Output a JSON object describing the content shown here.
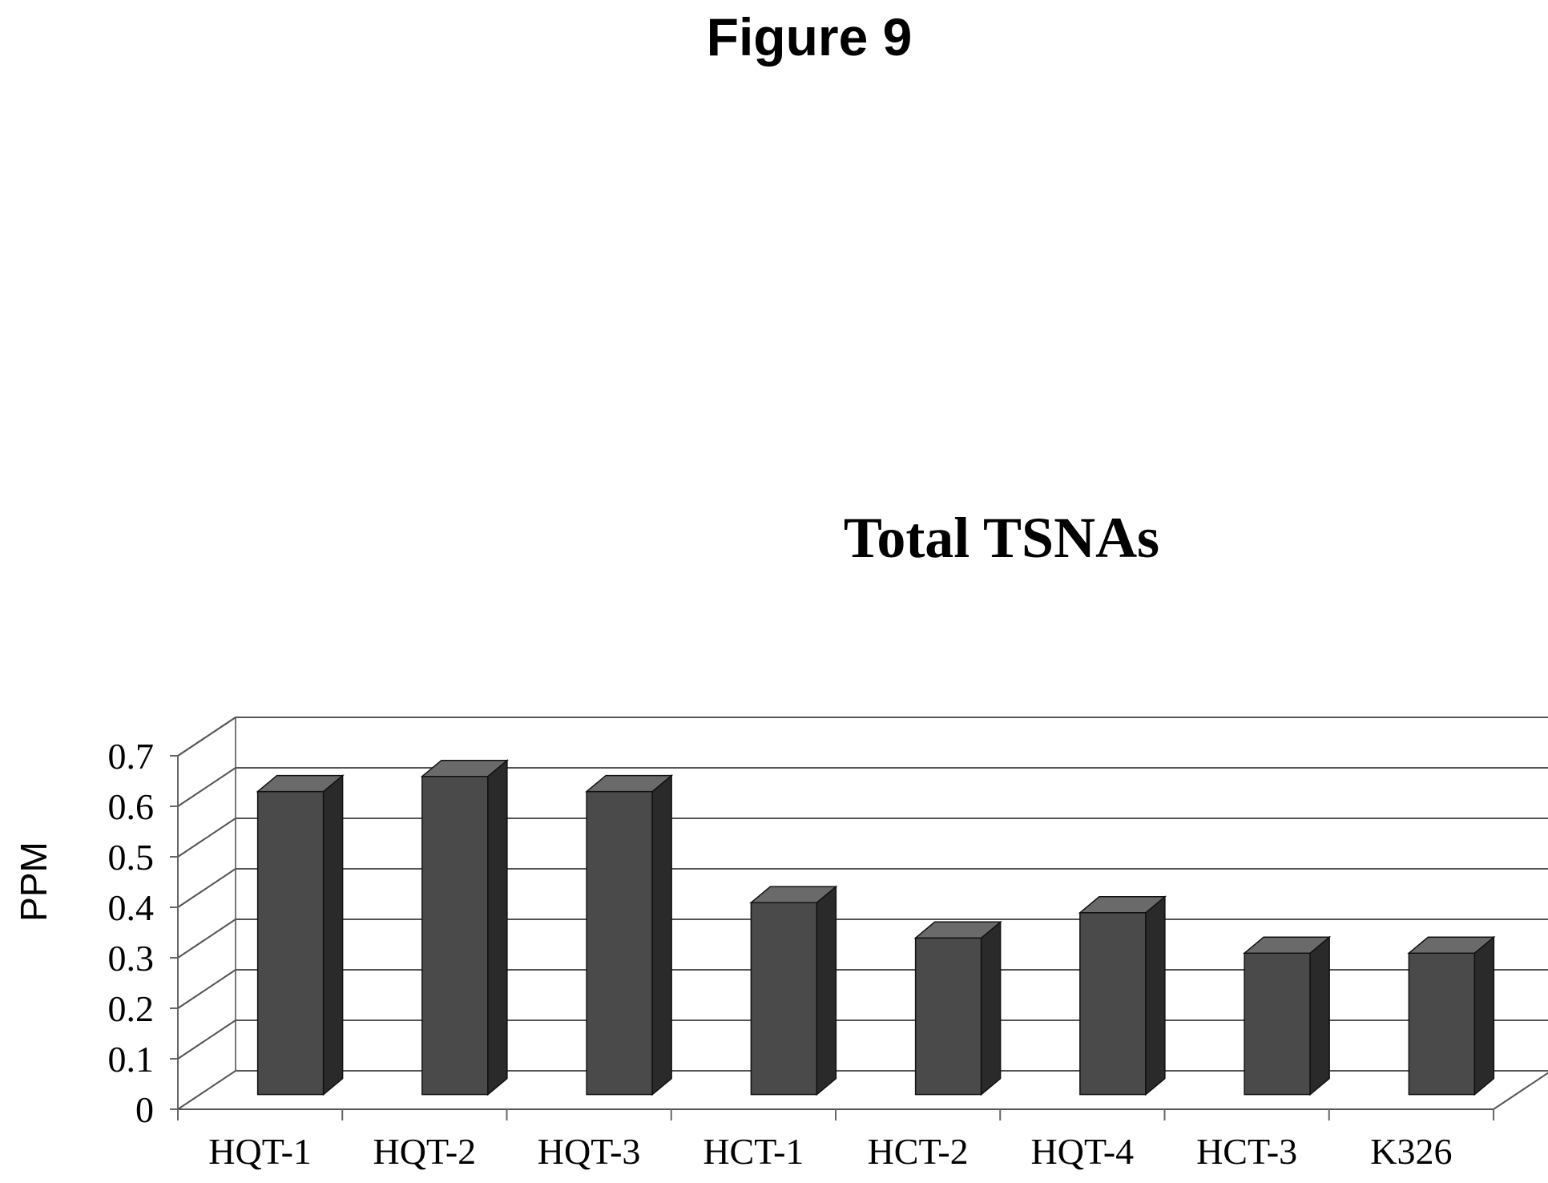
{
  "figure_title": "Figure 9",
  "chart_data": {
    "type": "bar",
    "title": "Total TSNAs",
    "xlabel": "",
    "ylabel": "PPM",
    "categories": [
      "HQT-1",
      "HQT-2",
      "HQT-3",
      "HCT-1",
      "HCT-2",
      "HQT-4",
      "HCT-3",
      "K326"
    ],
    "values": [
      0.6,
      0.63,
      0.6,
      0.38,
      0.31,
      0.36,
      0.28,
      0.28
    ],
    "ylim": [
      0,
      0.7
    ],
    "yticks": [
      "0",
      "0.1",
      "0.2",
      "0.3",
      "0.4",
      "0.5",
      "0.6",
      "0.7"
    ],
    "grid": true,
    "legend": "none",
    "style": "3d-column",
    "bar_color": "#4a4a4a",
    "bar_side_color": "#2a2a2a",
    "bar_top_color": "#6a6a6a",
    "grid_color": "#555555"
  }
}
